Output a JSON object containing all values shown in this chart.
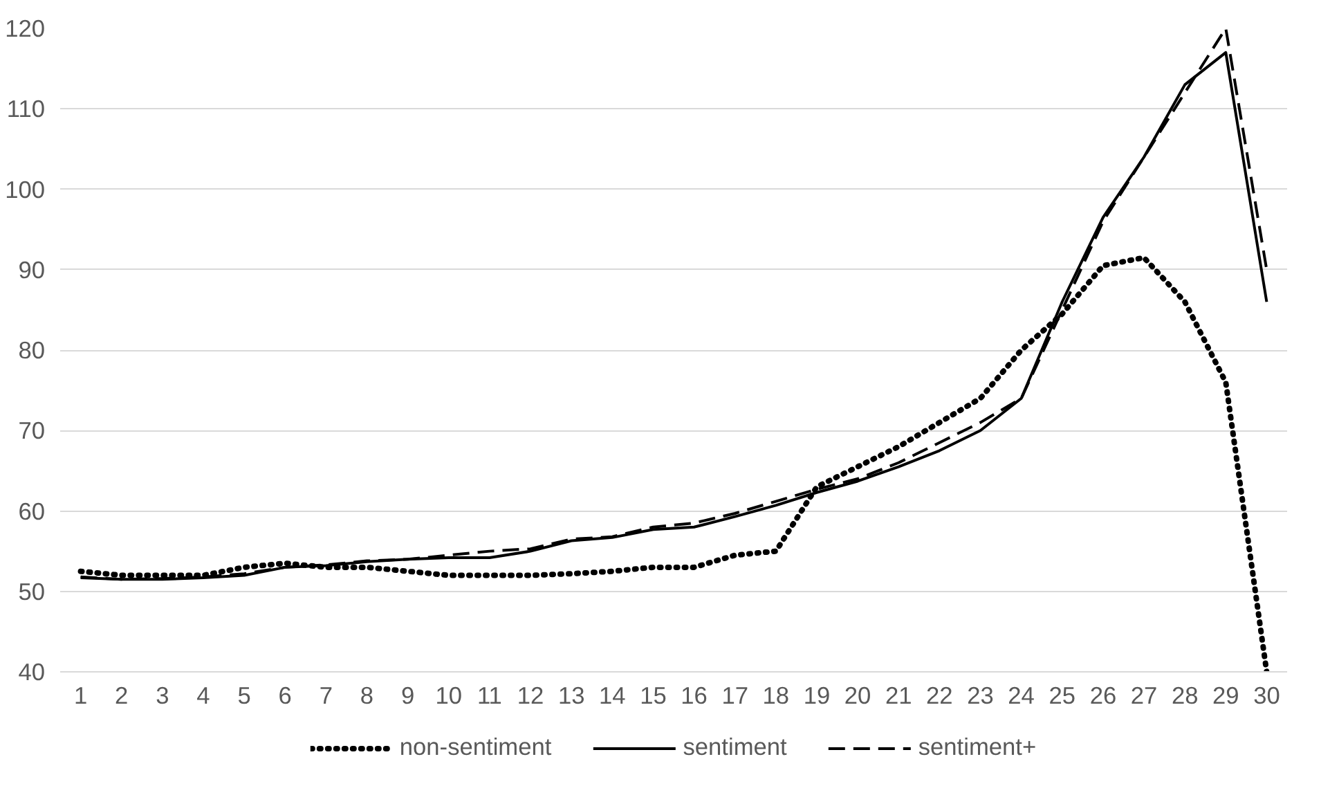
{
  "chart_data": {
    "type": "line",
    "x": [
      1,
      2,
      3,
      4,
      5,
      6,
      7,
      8,
      9,
      10,
      11,
      12,
      13,
      14,
      15,
      16,
      17,
      18,
      19,
      20,
      21,
      22,
      23,
      24,
      25,
      26,
      27,
      28,
      29,
      30
    ],
    "xlim": [
      0.5,
      30.5
    ],
    "xticks": [
      1,
      2,
      3,
      4,
      5,
      6,
      7,
      8,
      9,
      10,
      11,
      12,
      13,
      14,
      15,
      16,
      17,
      18,
      19,
      20,
      21,
      22,
      23,
      24,
      25,
      26,
      27,
      28,
      29,
      30
    ],
    "ylim": [
      40,
      120
    ],
    "yticks": [
      40,
      50,
      60,
      70,
      80,
      90,
      100,
      110,
      120
    ],
    "grid": "y",
    "legend": "bottom",
    "series": [
      {
        "name": "non-sentiment",
        "color": "#000000",
        "line_style": "dotted",
        "values": [
          52.5,
          52,
          52,
          52,
          53,
          53.5,
          53,
          53,
          52.5,
          52,
          52,
          52,
          52.2,
          52.5,
          53,
          53,
          54.5,
          55,
          63,
          65.5,
          68,
          71,
          74,
          80,
          84.5,
          90.5,
          91.5,
          86,
          76,
          40
        ]
      },
      {
        "name": "sentiment",
        "color": "#000000",
        "line_style": "solid",
        "values": [
          51.7,
          51.5,
          51.5,
          51.7,
          52,
          53,
          53.2,
          53.7,
          54,
          54.2,
          54.2,
          55,
          56.3,
          56.7,
          57.7,
          58,
          59.3,
          60.7,
          62.3,
          63.7,
          65.5,
          67.5,
          70,
          74,
          86,
          96.5,
          104,
          113,
          117,
          86
        ]
      },
      {
        "name": "sentiment+",
        "color": "#000000",
        "line_style": "dashed",
        "values": [
          51.8,
          51.5,
          51.6,
          51.8,
          52.2,
          53,
          53.3,
          53.8,
          54,
          54.5,
          55,
          55.3,
          56.5,
          56.8,
          58,
          58.5,
          59.7,
          61.2,
          62.7,
          64,
          66,
          68.5,
          71,
          74,
          85,
          96,
          104,
          112,
          120,
          90
        ]
      }
    ]
  }
}
